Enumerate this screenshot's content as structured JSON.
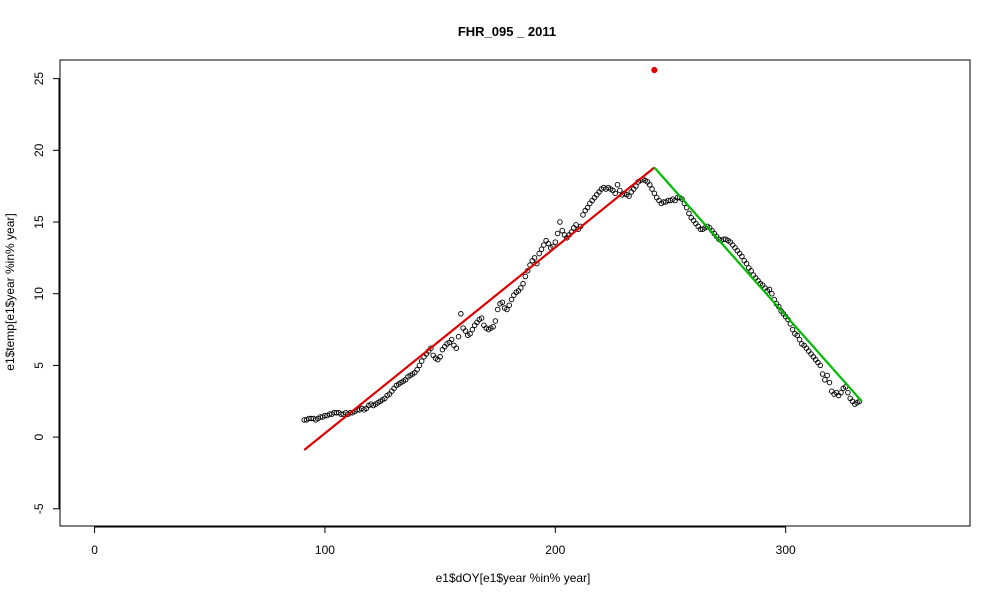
{
  "chart_data": {
    "type": "scatter",
    "title": "FHR_095 _ 2011",
    "xlabel": "e1$dOY[e1$year %in% year]",
    "ylabel": "e1$temp[e1$year %in% year]",
    "xlim": [
      -15,
      380
    ],
    "ylim": [
      -6.2,
      26.3
    ],
    "x_ticks": [
      0,
      100,
      200,
      300
    ],
    "y_ticks": [
      -5,
      0,
      5,
      10,
      15,
      20,
      25
    ],
    "grid": false,
    "legend": "none",
    "series": [
      {
        "kind": "points",
        "color": "#000000",
        "points": [
          [
            91,
            1.2
          ],
          [
            92,
            1.2
          ],
          [
            93,
            1.3
          ],
          [
            94,
            1.3
          ],
          [
            95,
            1.3
          ],
          [
            96,
            1.2
          ],
          [
            97,
            1.3
          ],
          [
            98,
            1.4
          ],
          [
            99,
            1.4
          ],
          [
            100,
            1.5
          ],
          [
            101,
            1.5
          ],
          [
            102,
            1.6
          ],
          [
            103,
            1.6
          ],
          [
            104,
            1.7
          ],
          [
            105,
            1.7
          ],
          [
            106,
            1.7
          ],
          [
            107,
            1.6
          ],
          [
            108,
            1.6
          ],
          [
            109,
            1.7
          ],
          [
            110,
            1.6
          ],
          [
            111,
            1.7
          ],
          [
            112,
            1.7
          ],
          [
            113,
            1.8
          ],
          [
            114,
            1.9
          ],
          [
            115,
            1.9
          ],
          [
            116,
            2.0
          ],
          [
            117,
            1.9
          ],
          [
            118,
            2.0
          ],
          [
            119,
            2.2
          ],
          [
            120,
            2.3
          ],
          [
            121,
            2.2
          ],
          [
            122,
            2.3
          ],
          [
            123,
            2.4
          ],
          [
            124,
            2.5
          ],
          [
            125,
            2.6
          ],
          [
            126,
            2.7
          ],
          [
            127,
            2.9
          ],
          [
            128,
            3.0
          ],
          [
            129,
            3.2
          ],
          [
            130,
            3.4
          ],
          [
            131,
            3.6
          ],
          [
            132,
            3.7
          ],
          [
            133,
            3.8
          ],
          [
            134,
            3.9
          ],
          [
            135,
            4.0
          ],
          [
            136,
            4.2
          ],
          [
            137,
            4.3
          ],
          [
            138,
            4.4
          ],
          [
            139,
            4.5
          ],
          [
            140,
            4.7
          ],
          [
            141,
            5.0
          ],
          [
            142,
            5.3
          ],
          [
            143,
            5.6
          ],
          [
            144,
            5.8
          ],
          [
            145,
            6.0
          ],
          [
            146,
            6.2
          ],
          [
            147,
            5.7
          ],
          [
            148,
            5.5
          ],
          [
            149,
            5.4
          ],
          [
            150,
            5.6
          ],
          [
            151,
            6.1
          ],
          [
            152,
            6.3
          ],
          [
            153,
            6.5
          ],
          [
            154,
            6.6
          ],
          [
            155,
            6.8
          ],
          [
            156,
            6.4
          ],
          [
            157,
            6.2
          ],
          [
            158,
            7.0
          ],
          [
            159,
            8.6
          ],
          [
            160,
            7.6
          ],
          [
            161,
            7.4
          ],
          [
            162,
            7.1
          ],
          [
            163,
            7.2
          ],
          [
            164,
            7.5
          ],
          [
            165,
            7.8
          ],
          [
            166,
            8.0
          ],
          [
            167,
            8.2
          ],
          [
            168,
            8.3
          ],
          [
            169,
            7.8
          ],
          [
            170,
            7.6
          ],
          [
            171,
            7.5
          ],
          [
            172,
            7.6
          ],
          [
            173,
            7.7
          ],
          [
            174,
            8.1
          ],
          [
            175,
            8.9
          ],
          [
            176,
            9.3
          ],
          [
            177,
            9.4
          ],
          [
            178,
            9.0
          ],
          [
            179,
            8.9
          ],
          [
            180,
            9.2
          ],
          [
            181,
            9.6
          ],
          [
            182,
            9.9
          ],
          [
            183,
            10.1
          ],
          [
            184,
            10.2
          ],
          [
            185,
            10.4
          ],
          [
            186,
            10.7
          ],
          [
            187,
            11.2
          ],
          [
            188,
            11.6
          ],
          [
            189,
            12.0
          ],
          [
            190,
            12.3
          ],
          [
            191,
            12.5
          ],
          [
            192,
            12.1
          ],
          [
            193,
            12.8
          ],
          [
            194,
            13.1
          ],
          [
            195,
            13.4
          ],
          [
            196,
            13.7
          ],
          [
            197,
            13.5
          ],
          [
            198,
            13.2
          ],
          [
            199,
            13.3
          ],
          [
            200,
            13.6
          ],
          [
            201,
            14.2
          ],
          [
            202,
            15.0
          ],
          [
            203,
            14.4
          ],
          [
            204,
            14.1
          ],
          [
            205,
            13.9
          ],
          [
            206,
            14.1
          ],
          [
            207,
            14.3
          ],
          [
            208,
            14.6
          ],
          [
            209,
            14.8
          ],
          [
            210,
            14.5
          ],
          [
            211,
            14.7
          ],
          [
            212,
            15.5
          ],
          [
            213,
            15.8
          ],
          [
            214,
            16.0
          ],
          [
            215,
            16.3
          ],
          [
            216,
            16.5
          ],
          [
            217,
            16.7
          ],
          [
            218,
            16.9
          ],
          [
            219,
            17.1
          ],
          [
            220,
            17.3
          ],
          [
            221,
            17.4
          ],
          [
            222,
            17.3
          ],
          [
            223,
            17.4
          ],
          [
            224,
            17.3
          ],
          [
            225,
            17.2
          ],
          [
            226,
            17.0
          ],
          [
            227,
            17.6
          ],
          [
            228,
            17.2
          ],
          [
            229,
            16.9
          ],
          [
            230,
            17.0
          ],
          [
            231,
            16.9
          ],
          [
            232,
            16.8
          ],
          [
            233,
            17.1
          ],
          [
            234,
            17.3
          ],
          [
            235,
            17.5
          ],
          [
            236,
            17.8
          ],
          [
            237,
            17.9
          ],
          [
            238,
            18.0
          ],
          [
            239,
            17.9
          ],
          [
            240,
            17.8
          ],
          [
            241,
            17.6
          ],
          [
            242,
            17.3
          ],
          [
            243,
            17.0
          ],
          [
            244,
            16.7
          ],
          [
            245,
            16.5
          ],
          [
            246,
            16.3
          ],
          [
            247,
            16.4
          ],
          [
            248,
            16.4
          ],
          [
            249,
            16.5
          ],
          [
            250,
            16.5
          ],
          [
            251,
            16.6
          ],
          [
            252,
            16.5
          ],
          [
            253,
            16.7
          ],
          [
            254,
            16.7
          ],
          [
            255,
            16.6
          ],
          [
            256,
            16.3
          ],
          [
            257,
            16.0
          ],
          [
            258,
            15.6
          ],
          [
            259,
            15.3
          ],
          [
            260,
            15.1
          ],
          [
            261,
            14.9
          ],
          [
            262,
            14.7
          ],
          [
            263,
            14.5
          ],
          [
            264,
            14.5
          ],
          [
            265,
            14.6
          ],
          [
            266,
            14.7
          ],
          [
            267,
            14.6
          ],
          [
            268,
            14.4
          ],
          [
            269,
            14.2
          ],
          [
            270,
            14.0
          ],
          [
            271,
            13.8
          ],
          [
            272,
            13.7
          ],
          [
            273,
            13.8
          ],
          [
            274,
            13.8
          ],
          [
            275,
            13.7
          ],
          [
            276,
            13.6
          ],
          [
            277,
            13.4
          ],
          [
            278,
            13.2
          ],
          [
            279,
            13.0
          ],
          [
            280,
            12.8
          ],
          [
            281,
            12.6
          ],
          [
            282,
            12.3
          ],
          [
            283,
            12.1
          ],
          [
            284,
            11.8
          ],
          [
            285,
            11.6
          ],
          [
            286,
            11.3
          ],
          [
            287,
            11.1
          ],
          [
            288,
            10.9
          ],
          [
            289,
            10.7
          ],
          [
            290,
            10.6
          ],
          [
            291,
            10.4
          ],
          [
            292,
            10.2
          ],
          [
            293,
            10.3
          ],
          [
            294,
            10.0
          ],
          [
            295,
            9.6
          ],
          [
            296,
            9.3
          ],
          [
            297,
            9.1
          ],
          [
            298,
            8.8
          ],
          [
            299,
            8.6
          ],
          [
            300,
            8.4
          ],
          [
            301,
            8.2
          ],
          [
            302,
            7.9
          ],
          [
            303,
            7.5
          ],
          [
            304,
            7.2
          ],
          [
            305,
            7.1
          ],
          [
            306,
            6.8
          ],
          [
            307,
            6.5
          ],
          [
            308,
            6.4
          ],
          [
            309,
            6.2
          ],
          [
            310,
            6.0
          ],
          [
            311,
            5.8
          ],
          [
            312,
            5.6
          ],
          [
            313,
            5.4
          ],
          [
            314,
            5.2
          ],
          [
            315,
            5.0
          ],
          [
            316,
            4.4
          ],
          [
            317,
            4.0
          ],
          [
            318,
            4.3
          ],
          [
            319,
            3.8
          ],
          [
            320,
            3.2
          ],
          [
            321,
            3.0
          ],
          [
            322,
            3.1
          ],
          [
            323,
            2.9
          ],
          [
            324,
            3.1
          ],
          [
            325,
            3.4
          ],
          [
            326,
            3.5
          ],
          [
            327,
            3.1
          ],
          [
            328,
            2.7
          ],
          [
            329,
            2.5
          ],
          [
            330,
            2.3
          ],
          [
            331,
            2.4
          ],
          [
            332,
            2.5
          ]
        ]
      },
      {
        "kind": "line",
        "color": "#dd0000",
        "points": [
          [
            91,
            -0.9
          ],
          [
            243,
            18.8
          ]
        ]
      },
      {
        "kind": "line",
        "color": "#00bb00",
        "points": [
          [
            243,
            18.8
          ],
          [
            333,
            2.5
          ]
        ]
      },
      {
        "kind": "marker",
        "color": "#dd0000",
        "points": [
          [
            243,
            25.6
          ]
        ]
      }
    ]
  }
}
